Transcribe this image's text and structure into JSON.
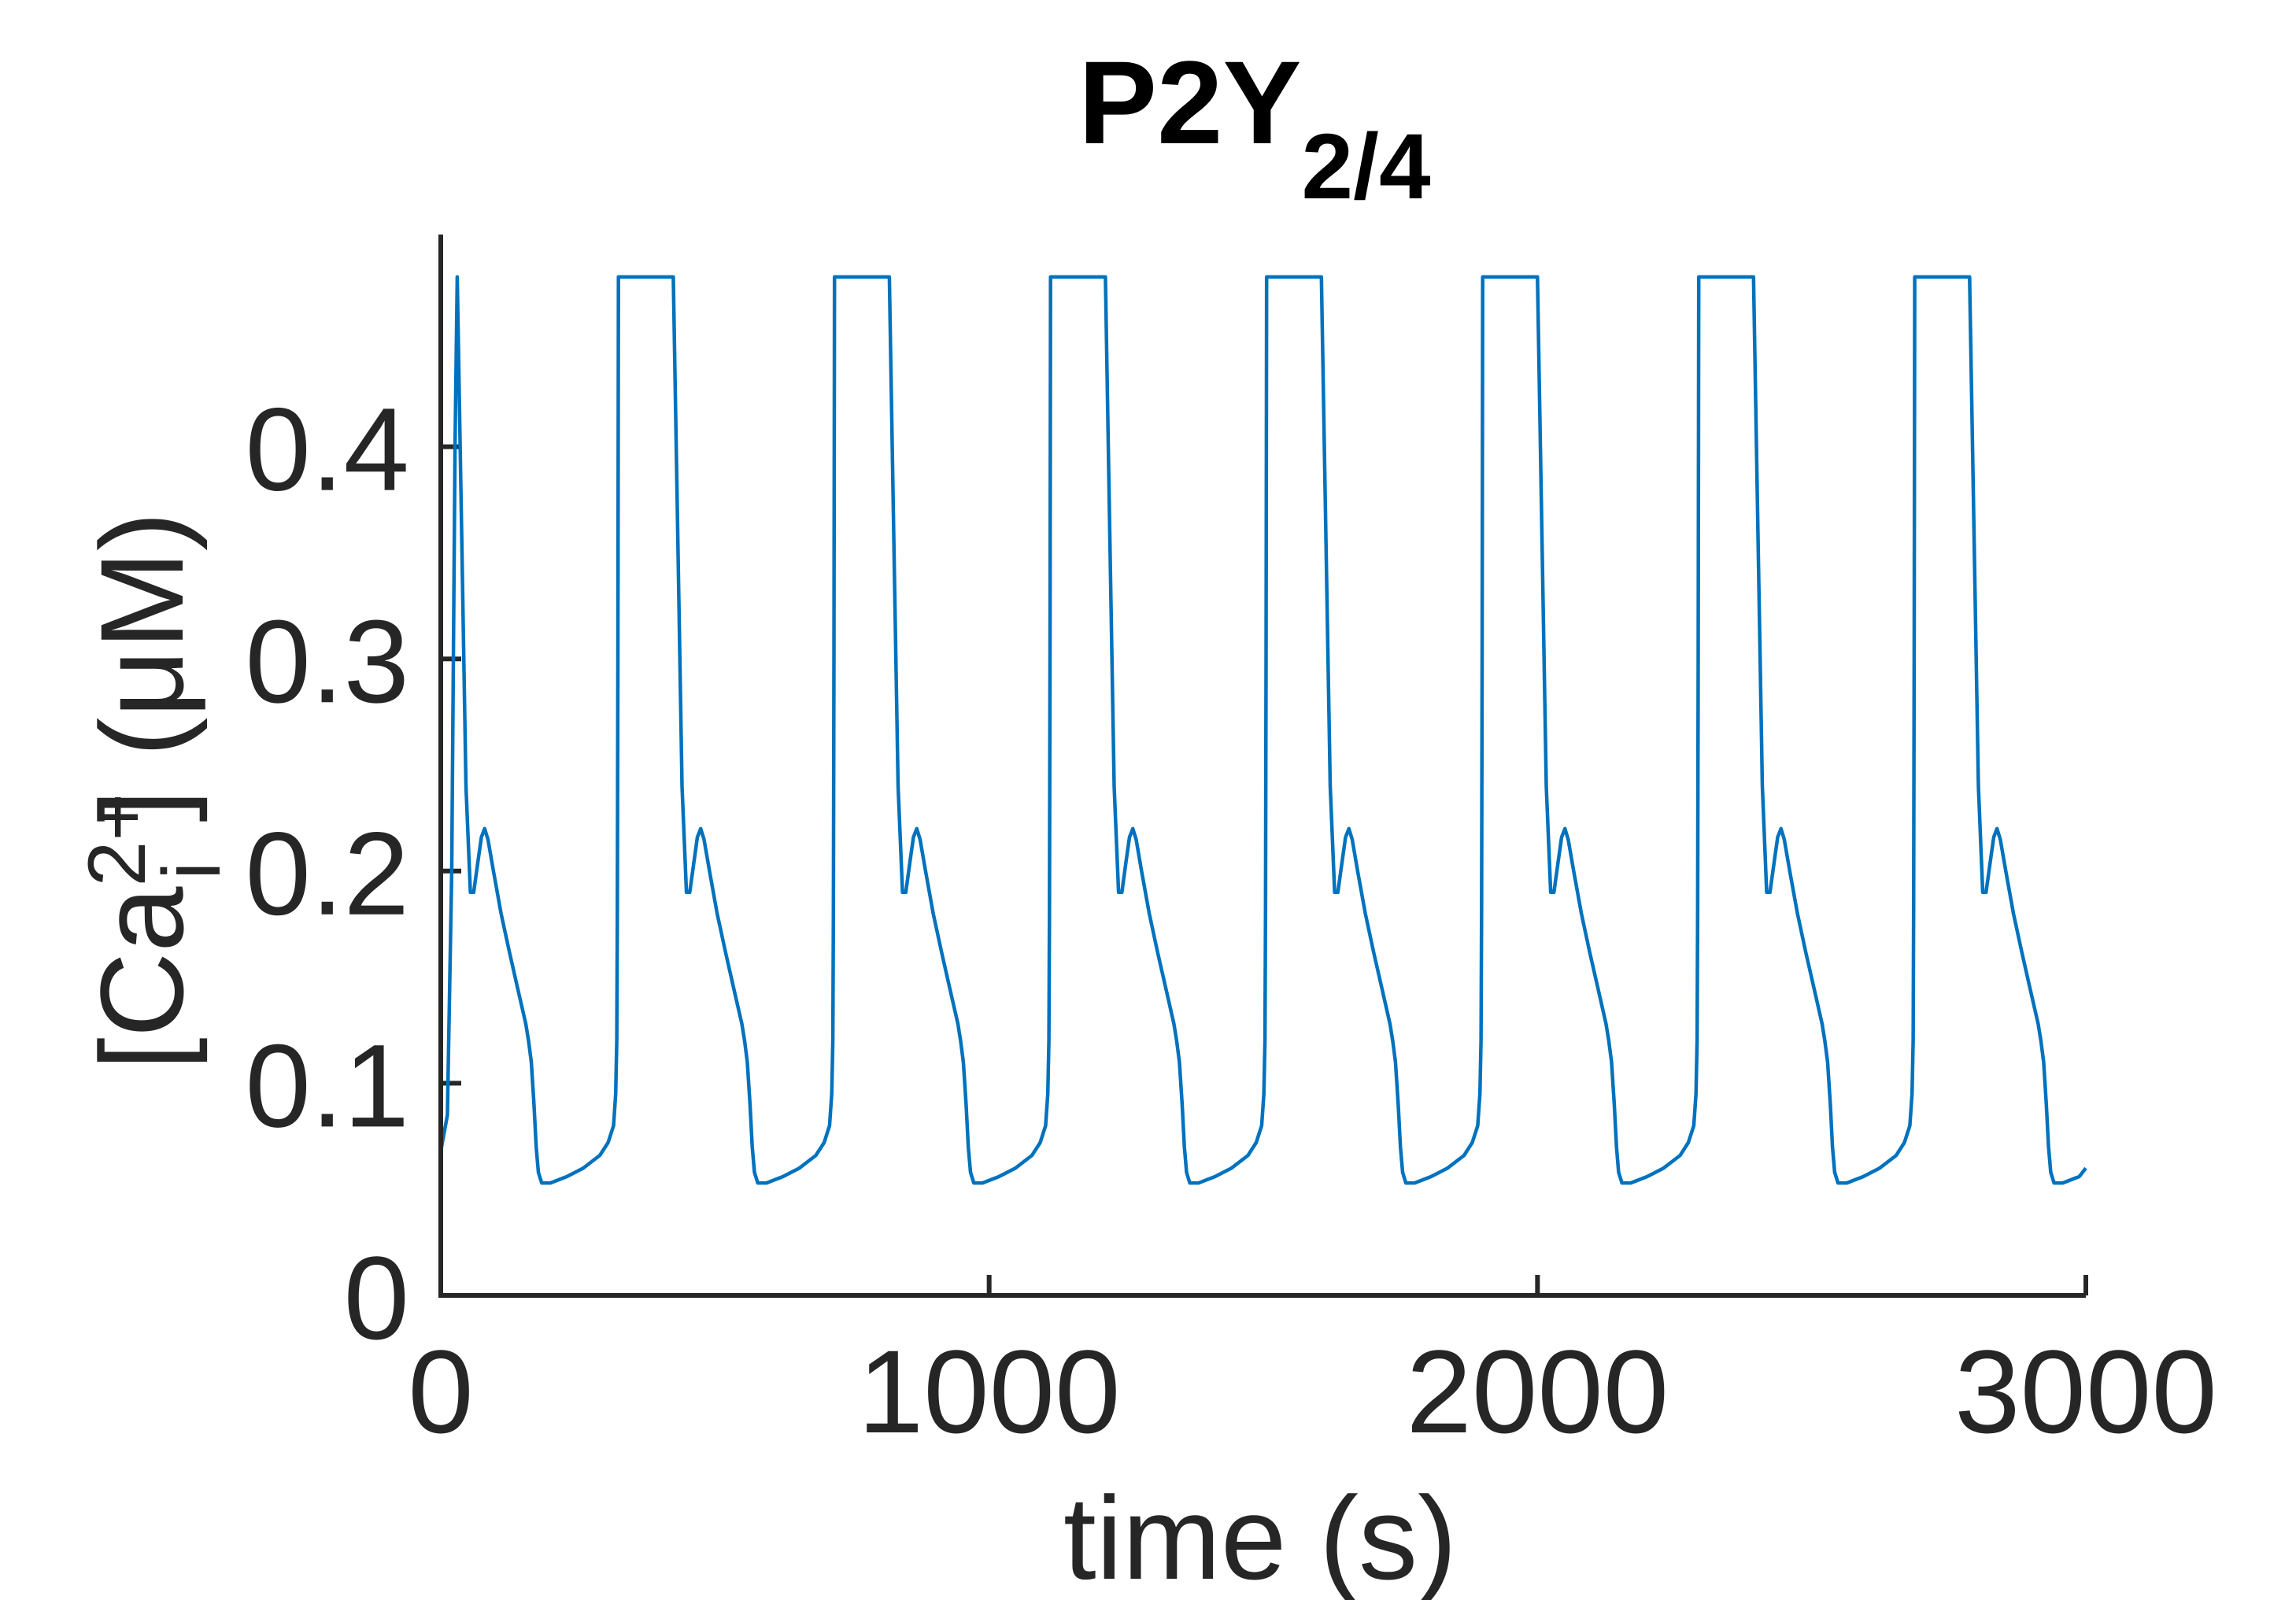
{
  "chart_data": {
    "type": "line",
    "title": "P2Y",
    "title_subscript": "2/4",
    "xlabel": "time (s)",
    "ylabel": {
      "prefix": "[Ca",
      "superscript": "2+",
      "subscript": "i",
      "suffix": "] (μM)"
    },
    "xlim": [
      0,
      3000
    ],
    "ylim": [
      0,
      0.5
    ],
    "x_ticks": [
      {
        "value": 0,
        "label": "0"
      },
      {
        "value": 1000,
        "label": "1000"
      },
      {
        "value": 2000,
        "label": "2000"
      },
      {
        "value": 3000,
        "label": "3000"
      }
    ],
    "y_ticks": [
      {
        "value": 0,
        "label": "0"
      },
      {
        "value": 0.1,
        "label": "0.1"
      },
      {
        "value": 0.2,
        "label": "0.2"
      },
      {
        "value": 0.3,
        "label": "0.3"
      },
      {
        "value": 0.4,
        "label": "0.4"
      }
    ],
    "grid": false,
    "box": false,
    "series": [
      {
        "color": "#0072BD",
        "period": 394,
        "cycles": 8,
        "first_spike_t": 30,
        "x_end": 3000,
        "initial_value": 0.068,
        "cycle_shape": [
          [
            0,
            0.48
          ],
          [
            8,
            0.36
          ],
          [
            16,
            0.24
          ],
          [
            24,
            0.19
          ],
          [
            30,
            0.19
          ],
          [
            38,
            0.205
          ],
          [
            44,
            0.216
          ],
          [
            50,
            0.22
          ],
          [
            56,
            0.215
          ],
          [
            66,
            0.2
          ],
          [
            80,
            0.18
          ],
          [
            95,
            0.162
          ],
          [
            110,
            0.145
          ],
          [
            125,
            0.128
          ],
          [
            130,
            0.12
          ],
          [
            135,
            0.11
          ],
          [
            140,
            0.09
          ],
          [
            144,
            0.07
          ],
          [
            148,
            0.058
          ],
          [
            154,
            0.053
          ],
          [
            170,
            0.053
          ],
          [
            200,
            0.056
          ],
          [
            230,
            0.06
          ],
          [
            260,
            0.066
          ],
          [
            275,
            0.072
          ],
          [
            285,
            0.08
          ],
          [
            289,
            0.095
          ],
          [
            291,
            0.12
          ],
          [
            292,
            0.18
          ],
          [
            293,
            0.3
          ],
          [
            294,
            0.48
          ]
        ]
      }
    ]
  }
}
